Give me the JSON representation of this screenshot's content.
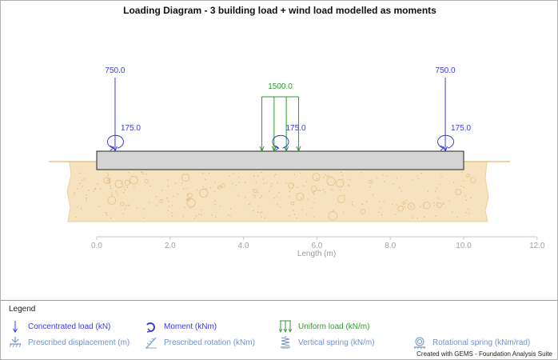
{
  "title": "Loading Diagram - 3 building load + wind load modelled as moments",
  "chart_data": {
    "type": "diagram",
    "beam": {
      "start_m": 0.0,
      "end_m": 10.0
    },
    "x_axis": {
      "label": "Length  (m)",
      "ticks": [
        0.0,
        2.0,
        4.0,
        6.0,
        8.0,
        10.0,
        12.0
      ],
      "tick_labels": [
        "0.0",
        "2.0",
        "4.0",
        "6.0",
        "8.0",
        "10.0",
        "12.0"
      ],
      "range": [
        0.0,
        12.0
      ]
    },
    "concentrated_loads": [
      {
        "x": 0.5,
        "value": 750.0,
        "label": "750.0"
      },
      {
        "x": 9.5,
        "value": 750.0,
        "label": "750.0"
      }
    ],
    "moments": [
      {
        "x": 0.5,
        "value": 175.0,
        "label": "175.0"
      },
      {
        "x": 5.0,
        "value": 175.0,
        "label": "175.0"
      },
      {
        "x": 9.5,
        "value": 175.0,
        "label": "175.0"
      }
    ],
    "uniform_loads": [
      {
        "x_start": 4.5,
        "x_end": 5.5,
        "value": 1500.0,
        "label": "1500.0"
      }
    ]
  },
  "legend": {
    "title": "Legend",
    "items": [
      {
        "label": "Concentrated load (kN)",
        "icon": "concentrated-load-icon",
        "color": "#3b3bd6"
      },
      {
        "label": "Moment (kNm)",
        "icon": "moment-icon",
        "color": "#3b3bd6"
      },
      {
        "label": "Uniform load (kN/m)",
        "icon": "uniform-load-icon",
        "color": "#2e9a2e"
      },
      {
        "label": "Prescribed displacement (m)",
        "icon": "prescribed-displacement-icon",
        "color": "#6f93c9"
      },
      {
        "label": "Prescribed rotation (kNm)",
        "icon": "prescribed-rotation-icon",
        "color": "#6f93c9"
      },
      {
        "label": "Vertical spring (kN/m)",
        "icon": "vertical-spring-icon",
        "color": "#6f93c9"
      },
      {
        "label": "Rotational spring (kNm/rad)",
        "icon": "rotational-spring-icon",
        "color": "#6f93c9"
      }
    ]
  },
  "credit": "Created with GEMS - Foundation Analysis Suite",
  "colors": {
    "load": "#3b3bd6",
    "uniform": "#2e9a2e",
    "soil": "#f7e2bf",
    "soil_edge": "#e7b870",
    "beam": "#d4d4d4",
    "axis": "#c8c8c8"
  }
}
